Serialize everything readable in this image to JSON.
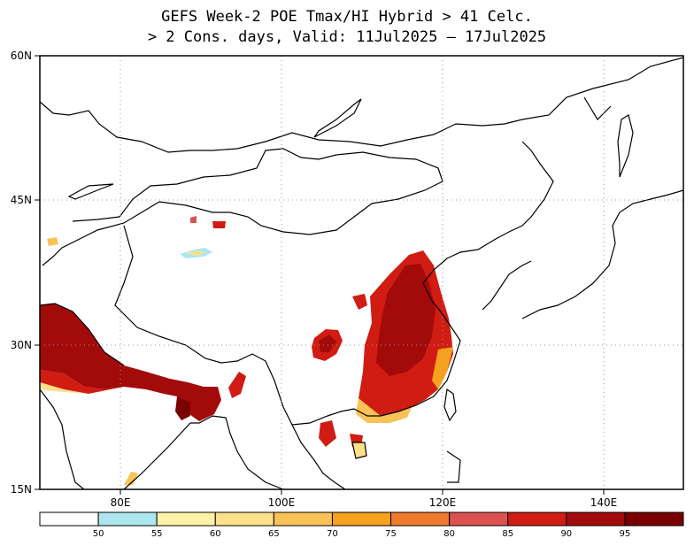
{
  "title": {
    "line1": "GEFS Week-2 POE Tmax/HI Hybrid > 41 Celc.",
    "line2": "> 2 Cons. days, Valid: 11Jul2025 – 17Jul2025"
  },
  "axes": {
    "lat_labels": [
      "60N",
      "45N",
      "30N",
      "15N"
    ],
    "lon_labels": [
      "80E",
      "100E",
      "120E",
      "140E"
    ]
  },
  "colorbar": {
    "ticks": [
      "50",
      "55",
      "60",
      "65",
      "70",
      "75",
      "80",
      "85",
      "90",
      "95"
    ],
    "colors": [
      "#ffffff",
      "#aee6f0",
      "#fdf3a8",
      "#fde08a",
      "#f9c257",
      "#f6a21e",
      "#f07a2c",
      "#dc5252",
      "#d01c12",
      "#a30a0a",
      "#7a0000"
    ]
  },
  "map_data": {
    "extent": {
      "lon": [
        70,
        150
      ],
      "lat": [
        15,
        60
      ]
    },
    "gridlines": "dotted every 20° longitude / 15° latitude",
    "high_probability_regions": [
      "Northern India / Pakistan",
      "Indo-Gangetic plain",
      "Eastern China (North China Plain to Yangtze)",
      "Sichuan Basin"
    ]
  }
}
